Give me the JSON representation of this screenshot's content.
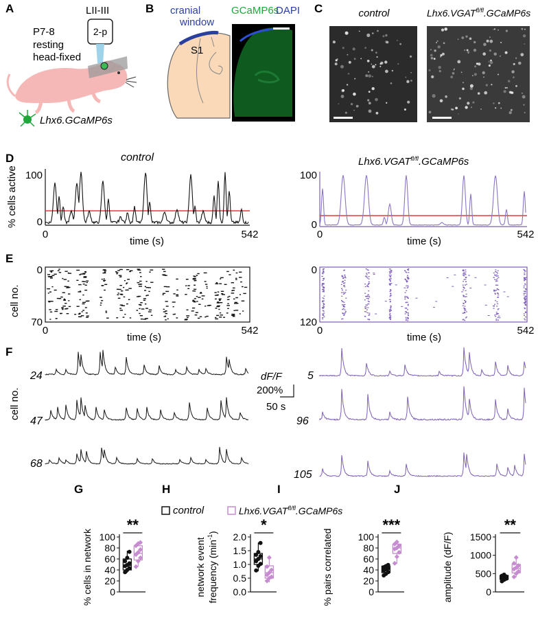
{
  "panels": {
    "A": {
      "letter": "A",
      "layer": "LII-III",
      "scope": "2-p",
      "age": "P7-8",
      "state1": "resting",
      "state2": "head-fixed",
      "genotype": "Lhx6.GCaMP6s"
    },
    "B": {
      "letter": "B",
      "window1": "cranial",
      "window2": "window",
      "area": "S1",
      "stain_green": "GCaMP6s",
      "stain_blue": "DAPI"
    },
    "C": {
      "letter": "C",
      "control": "control",
      "mutant_pre": "Lhx6.VGAT",
      "mutant_sup": "fl/fl",
      "mutant_post": ".GCaMP6s"
    },
    "D": {
      "letter": "D",
      "ylabel": "% cells active",
      "ymax": "100",
      "ymin": "0",
      "xmin": "0",
      "xmax": "542",
      "xlabel": "time (s)",
      "control_title": "control",
      "mutant_pre": "Lhx6.VGAT",
      "mutant_sup": "fl/fl",
      "mutant_post": ".GCaMP6s"
    },
    "E": {
      "letter": "E",
      "ylabel": "cell no.",
      "control_ymin": "0",
      "control_ymax": "70",
      "mutant_ymin": "0",
      "mutant_ymax": "120",
      "xmin": "0",
      "xmax": "542",
      "xlabel": "time (s)"
    },
    "F": {
      "letter": "F",
      "ylabel": "cell no.",
      "control_cells": [
        "24",
        "47",
        "68"
      ],
      "mutant_cells": [
        "5",
        "96",
        "105"
      ],
      "scale_y": "dF/F",
      "scale_y_val": "200%",
      "scale_x_val": "50 s"
    },
    "legend": {
      "control": "control",
      "mutant_pre": "Lhx6.VGAT",
      "mutant_sup": "fl/fl",
      "mutant_post": ".GCaMP6s"
    }
  },
  "colors": {
    "control": "#111111",
    "mutant": "#7b5cb8",
    "mutant_box": "#c58ccf",
    "threshold": "#e23b3b",
    "cranial": "#2a3f9e",
    "green": "#1fa83a",
    "brain": "#f9d9b8",
    "mouse": "#f6b7b7"
  },
  "chart_data": [
    {
      "type": "box",
      "letter": "G",
      "ylabel": "% cells in network",
      "yticks": [
        "0",
        "20",
        "40",
        "60",
        "80",
        "100"
      ],
      "ylim": [
        0,
        100
      ],
      "significance": "**",
      "series": [
        {
          "name": "control",
          "q1": 40,
          "median": 48,
          "q3": 60,
          "min": 35,
          "max": 75,
          "points": [
            36,
            40,
            43,
            47,
            49,
            52,
            56,
            62,
            73
          ]
        },
        {
          "name": "Lhx6.VGATfl/fl.GCaMP6s",
          "q1": 58,
          "median": 70,
          "q3": 84,
          "min": 46,
          "max": 91,
          "points": [
            46,
            56,
            62,
            68,
            72,
            77,
            84,
            88,
            90
          ]
        }
      ]
    },
    {
      "type": "box",
      "letter": "H",
      "ylabel": "network event frequency (min-1)",
      "yticks": [
        "0.0",
        "0.5",
        "1.0",
        "1.5",
        "2.0"
      ],
      "ylim": [
        0,
        2.0
      ],
      "significance": "*",
      "series": [
        {
          "name": "control",
          "q1": 1.0,
          "median": 1.2,
          "q3": 1.4,
          "min": 0.75,
          "max": 1.8,
          "points": [
            0.78,
            0.95,
            1.02,
            1.12,
            1.2,
            1.3,
            1.35,
            1.45,
            1.78
          ]
        },
        {
          "name": "Lhx6.VGATfl/fl.GCaMP6s",
          "q1": 0.5,
          "median": 0.7,
          "q3": 0.95,
          "min": 0.35,
          "max": 1.3,
          "points": [
            0.4,
            0.5,
            0.55,
            0.62,
            0.7,
            0.8,
            0.92,
            1.25
          ]
        }
      ]
    },
    {
      "type": "box",
      "letter": "I",
      "ylabel": "% pairs correlated",
      "yticks": [
        "0",
        "20",
        "40",
        "60",
        "80",
        "100"
      ],
      "ylim": [
        0,
        100
      ],
      "significance": "***",
      "series": [
        {
          "name": "control",
          "q1": 35,
          "median": 42,
          "q3": 47,
          "min": 29,
          "max": 50,
          "points": [
            30,
            33,
            36,
            39,
            41,
            43,
            45,
            47,
            49
          ]
        },
        {
          "name": "Lhx6.VGATfl/fl.GCaMP6s",
          "q1": 70,
          "median": 80,
          "q3": 87,
          "min": 51,
          "max": 93,
          "points": [
            52,
            64,
            72,
            78,
            80,
            84,
            87,
            91
          ]
        }
      ]
    },
    {
      "type": "box",
      "letter": "J",
      "ylabel": "amplitude (dF/F)",
      "yticks": [
        "0",
        "500",
        "1000",
        "1500"
      ],
      "ylim": [
        0,
        1500
      ],
      "significance": "**",
      "series": [
        {
          "name": "control",
          "q1": 340,
          "median": 400,
          "q3": 450,
          "min": 280,
          "max": 480,
          "points": [
            290,
            330,
            360,
            380,
            400,
            420,
            440,
            470
          ]
        },
        {
          "name": "Lhx6.VGATfl/fl.GCaMP6s",
          "q1": 520,
          "median": 640,
          "q3": 750,
          "min": 400,
          "max": 950,
          "points": [
            410,
            500,
            560,
            620,
            660,
            720,
            780,
            940
          ]
        }
      ]
    }
  ]
}
